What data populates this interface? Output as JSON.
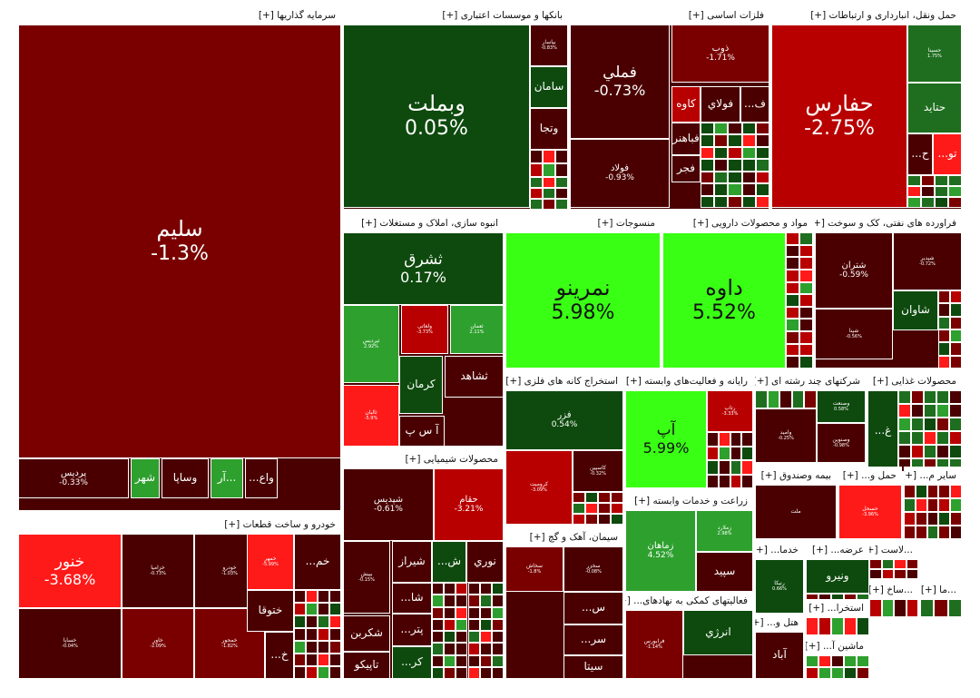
{
  "colors": {
    "deep_red": "#4a0000",
    "dark_red": "#7a0000",
    "red": "#b80000",
    "bright_red": "#ff1a1a",
    "deep_green": "#0e4a0e",
    "dark_green": "#1f6e1f",
    "green": "#2ea02e",
    "bright_green": "#39ff14",
    "gray": "#777777"
  },
  "chart_data": {
    "type": "treemap",
    "expand_marker": "[+]",
    "sectors": [
      {
        "name": "سرمایه گذاریها",
        "tiles": [
          {
            "name": "سليم",
            "change": "-1.3%",
            "color": "dark_red",
            "size": "xl"
          },
          {
            "name": "پرديس",
            "change": "-0.33%",
            "color": "deep_red",
            "size": "xs"
          },
          {
            "name": "شهر",
            "change": "",
            "color": "green",
            "size": "s"
          },
          {
            "name": "وساپا",
            "change": "",
            "color": "deep_red",
            "size": "s"
          },
          {
            "name": "آر...",
            "change": "",
            "color": "green",
            "size": "s"
          },
          {
            "name": "...واع",
            "change": "",
            "color": "deep_red",
            "size": "s"
          }
        ]
      },
      {
        "name": "بانکها و موسسات اعتباری",
        "tiles": [
          {
            "name": "وبملت",
            "change": "0.05%",
            "color": "deep_green",
            "size": "l"
          },
          {
            "name": "بپاسار",
            "change": "-0.83%",
            "color": "deep_red",
            "size": "xxs"
          },
          {
            "name": "سامان",
            "change": "",
            "color": "deep_green",
            "size": "s"
          },
          {
            "name": "وتجا",
            "change": "",
            "color": "deep_red",
            "size": "s"
          }
        ]
      },
      {
        "name": "فلزات اساسی",
        "tiles": [
          {
            "name": "فملي",
            "change": "-0.73%",
            "color": "deep_red",
            "size": "m"
          },
          {
            "name": "ذوب",
            "change": "-1.71%",
            "color": "dark_red",
            "size": "xs"
          },
          {
            "name": "فولاد",
            "change": "-0.93%",
            "color": "deep_red",
            "size": "xs"
          },
          {
            "name": "كاوه",
            "change": "",
            "color": "red",
            "size": "s"
          },
          {
            "name": "فولاي",
            "change": "",
            "color": "deep_red",
            "size": "s"
          },
          {
            "name": "...ف",
            "change": "",
            "color": "deep_red",
            "size": "s"
          },
          {
            "name": "فباهنر",
            "change": "",
            "color": "deep_red",
            "size": "s"
          },
          {
            "name": "فجر",
            "change": "",
            "color": "deep_red",
            "size": "s"
          }
        ]
      },
      {
        "name": "حمل ونقل، انبارداری و ارتباطات",
        "tiles": [
          {
            "name": "حفارس",
            "change": "-2.75%",
            "color": "red",
            "size": "l"
          },
          {
            "name": "حسينا",
            "change": "1.75%",
            "color": "dark_green",
            "size": "xxs"
          },
          {
            "name": "حتايد",
            "change": "",
            "color": "dark_green",
            "size": "s"
          },
          {
            "name": "...ح",
            "change": "",
            "color": "deep_red",
            "size": "s"
          },
          {
            "name": "...تو",
            "change": "",
            "color": "bright_red",
            "size": "s"
          }
        ]
      },
      {
        "name": "انبوه سازی، املاک و مستغلات",
        "tiles": [
          {
            "name": "ثشرق",
            "change": "0.17%",
            "color": "deep_green",
            "size": "m"
          },
          {
            "name": "ثپرديس",
            "change": "2.92%",
            "color": "green",
            "size": "xxs"
          },
          {
            "name": "ولغاتی",
            "change": "-3.73%",
            "color": "red",
            "size": "xxs"
          },
          {
            "name": "ثعمان",
            "change": "2.11%",
            "color": "green",
            "size": "xxs"
          },
          {
            "name": "ثشاهد",
            "change": "",
            "color": "deep_red",
            "size": "s"
          },
          {
            "name": "كرمان",
            "change": "",
            "color": "deep_green",
            "size": "s"
          },
          {
            "name": "ثالبان",
            "change": "-5.9%",
            "color": "bright_red",
            "size": "xxs"
          },
          {
            "name": "آ س پ",
            "change": "",
            "color": "deep_red",
            "size": "s"
          }
        ]
      },
      {
        "name": "منسوجات",
        "tiles": [
          {
            "name": "نمرينو",
            "change": "5.98%",
            "color": "bright_green",
            "size": "l"
          }
        ]
      },
      {
        "name": "مواد و محصولات دارویی",
        "tiles": [
          {
            "name": "داوه",
            "change": "5.52%",
            "color": "bright_green",
            "size": "l"
          }
        ]
      },
      {
        "name": "فراورده های نفتی، کک و سوخت",
        "tiles": [
          {
            "name": "شتران",
            "change": "-0.59%",
            "color": "deep_red",
            "size": "xs"
          },
          {
            "name": "شپدير",
            "change": "-0.72%",
            "color": "deep_red",
            "size": "xxs"
          },
          {
            "name": "شاوان",
            "change": "",
            "color": "deep_green",
            "size": "s"
          },
          {
            "name": "شپنا",
            "change": "-0.56%",
            "color": "deep_red",
            "size": "xxs"
          }
        ]
      },
      {
        "name": "استخراج کانه های فلزی",
        "tiles": [
          {
            "name": "فزر",
            "change": "0.54%",
            "color": "deep_green",
            "size": "xs"
          },
          {
            "name": "كروميت",
            "change": "-3.09%",
            "color": "red",
            "size": "xxs"
          },
          {
            "name": "كاسپين",
            "change": "-0.32%",
            "color": "deep_red",
            "size": "xxs"
          }
        ]
      },
      {
        "name": "رایانه و فعالیت‌های وابسته",
        "tiles": [
          {
            "name": "آپ",
            "change": "5.99%",
            "color": "bright_green",
            "size": "m"
          },
          {
            "name": "رتاپ",
            "change": "-3.33%",
            "color": "red",
            "size": "xxs"
          }
        ]
      },
      {
        "name": "شرکتهای چند رشته ای",
        "tiles": [
          {
            "name": "وصنعت",
            "change": "0.58%",
            "color": "deep_green",
            "size": "xxs"
          },
          {
            "name": "واميد",
            "change": "-0.25%",
            "color": "deep_red",
            "size": "xxs"
          },
          {
            "name": "وصنوین",
            "change": "-0.98%",
            "color": "deep_red",
            "size": "xxs"
          }
        ]
      },
      {
        "name": "محصولات غذایی",
        "tiles": [
          {
            "name": "...غ",
            "change": "",
            "color": "deep_green",
            "size": "s"
          }
        ]
      },
      {
        "name": "محصولات شیمیایی",
        "tiles": [
          {
            "name": "شپديس",
            "change": "-0.61%",
            "color": "deep_red",
            "size": "xs"
          },
          {
            "name": "حقام",
            "change": "-3.21%",
            "color": "red",
            "size": "xs"
          },
          {
            "name": "بپيش",
            "change": "-0.15%",
            "color": "deep_red",
            "size": "xxs"
          },
          {
            "name": "شيراز",
            "change": "",
            "color": "deep_red",
            "size": "s"
          },
          {
            "name": "...ش",
            "change": "",
            "color": "deep_green",
            "size": "s"
          },
          {
            "name": "نوري",
            "change": "",
            "color": "deep_red",
            "size": "s"
          },
          {
            "name": "...شا",
            "change": "",
            "color": "deep_red",
            "size": "s"
          },
          {
            "name": "شكربن",
            "change": "",
            "color": "deep_red",
            "size": "s"
          },
          {
            "name": "...پتر",
            "change": "",
            "color": "deep_red",
            "size": "s"
          },
          {
            "name": "تاپيكو",
            "change": "",
            "color": "deep_red",
            "size": "s"
          },
          {
            "name": "...كر",
            "change": "",
            "color": "deep_green",
            "size": "s"
          }
        ]
      },
      {
        "name": "زراعت و خدمات وابسته",
        "tiles": [
          {
            "name": "زماهان",
            "change": "4.52%",
            "color": "green",
            "size": "xs"
          },
          {
            "name": "زملارد",
            "change": "2.98%",
            "color": "green",
            "size": "xxs"
          },
          {
            "name": "سپيد",
            "change": "",
            "color": "deep_red",
            "size": "s"
          }
        ]
      },
      {
        "name": "بیمه وصندوق",
        "tiles": [
          {
            "name": "ملت",
            "change": "",
            "color": "deep_red",
            "size": "xxs"
          }
        ]
      },
      {
        "name": "حمل و...",
        "tiles": [
          {
            "name": "حسحل",
            "change": "-3.96%",
            "color": "bright_red",
            "size": "xxs"
          }
        ]
      },
      {
        "name": "سایر م...",
        "tiles": []
      },
      {
        "name": "خودرو و ساخت قطعات",
        "tiles": [
          {
            "name": "خنور",
            "change": "-3.68%",
            "color": "bright_red",
            "size": "m"
          },
          {
            "name": "خساپا",
            "change": "-0.04%",
            "color": "deep_red",
            "size": "xxs"
          },
          {
            "name": "خزاميا",
            "change": "-0.73%",
            "color": "deep_red",
            "size": "xxs"
          },
          {
            "name": "خاور",
            "change": "-2.09%",
            "color": "dark_red",
            "size": "xxs"
          },
          {
            "name": "خودرو",
            "change": "-1.03%",
            "color": "deep_red",
            "size": "xxs"
          },
          {
            "name": "خمحور",
            "change": "-1.82%",
            "color": "dark_red",
            "size": "xxs"
          },
          {
            "name": "خمهر",
            "change": "-5.99%",
            "color": "bright_red",
            "size": "xxs"
          },
          {
            "name": "ختوقا",
            "change": "",
            "color": "deep_red",
            "size": "s"
          },
          {
            "name": "...خ",
            "change": "",
            "color": "deep_red",
            "size": "s"
          },
          {
            "name": "...خم",
            "change": "",
            "color": "deep_red",
            "size": "s"
          }
        ]
      },
      {
        "name": "سیمان، آهک و گچ",
        "tiles": [
          {
            "name": "سخاش",
            "change": "-1.8%",
            "color": "dark_red",
            "size": "xxs"
          },
          {
            "name": "سخزر",
            "change": "-0.08%",
            "color": "deep_red",
            "size": "xxs"
          },
          {
            "name": "...س",
            "change": "",
            "color": "deep_red",
            "size": "s"
          },
          {
            "name": "...سر",
            "change": "",
            "color": "deep_red",
            "size": "s"
          },
          {
            "name": "سيتا",
            "change": "",
            "color": "deep_red",
            "size": "s"
          }
        ]
      },
      {
        "name": "فعالیتهای کمکی به نهادهای...",
        "tiles": [
          {
            "name": "فرابورس",
            "change": "-1.14%",
            "color": "dark_red",
            "size": "xxs"
          },
          {
            "name": "انرژي",
            "change": "",
            "color": "deep_green",
            "size": "s"
          }
        ]
      },
      {
        "name": "خدما...",
        "tiles": [
          {
            "name": "رنيكا",
            "change": "0.66%",
            "color": "deep_green",
            "size": "xxs"
          }
        ]
      },
      {
        "name": "عرضه...",
        "tiles": [
          {
            "name": "ونيرو",
            "change": "",
            "color": "deep_green",
            "size": "s"
          }
        ]
      },
      {
        "name": "...لاست",
        "tiles": []
      },
      {
        "name": "استخرا...",
        "tiles": []
      },
      {
        "name": "هتل و...",
        "tiles": [
          {
            "name": "آباد",
            "change": "",
            "color": "deep_red",
            "size": "s"
          }
        ]
      },
      {
        "name": "ماشین آ...",
        "tiles": []
      },
      {
        "name": "...ساخ",
        "tiles": []
      },
      {
        "name": "...ما",
        "tiles": []
      }
    ]
  }
}
